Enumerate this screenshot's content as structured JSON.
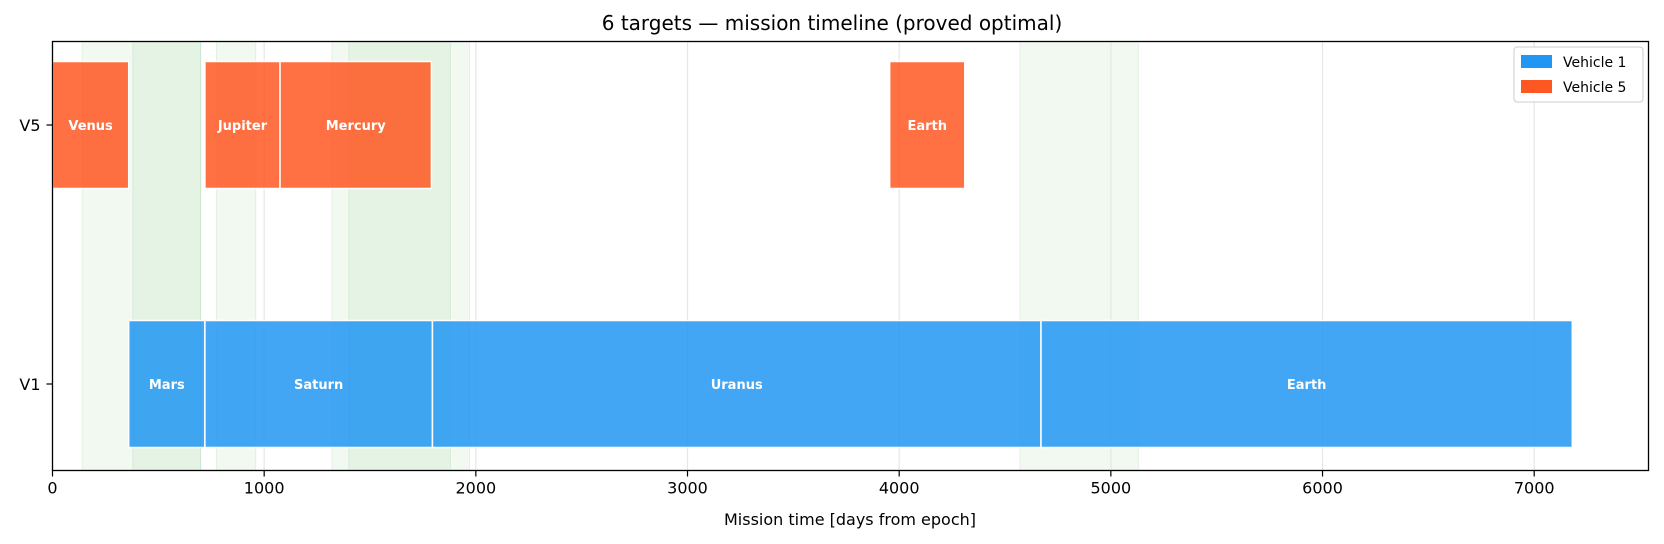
{
  "chart_data": {
    "type": "gantt",
    "title": "6 targets — mission timeline (proved optimal)",
    "xlabel": "Mission time [days from epoch]",
    "xlim": [
      0,
      7540
    ],
    "xticks": [
      0,
      1000,
      2000,
      3000,
      4000,
      5000,
      6000,
      7000
    ],
    "rows": [
      "V5",
      "V1"
    ],
    "grid": "vertical",
    "legend": {
      "placement": "top-right",
      "entries": [
        {
          "name": "Vehicle 1",
          "color": "#2196F3"
        },
        {
          "name": "Vehicle 5",
          "color": "#FF5722"
        }
      ]
    },
    "windows": [
      [
        140,
        700
      ],
      [
        380,
        700
      ],
      [
        775,
        960
      ],
      [
        1320,
        1880
      ],
      [
        1400,
        1970
      ],
      [
        4570,
        5130
      ]
    ],
    "series": [
      {
        "name": "Vehicle 5",
        "row": "V5",
        "color": "#FF5722",
        "segments": [
          {
            "label": "Venus",
            "start": 0,
            "end": 360
          },
          {
            "label": "Jupiter",
            "start": 720,
            "end": 1075
          },
          {
            "label": "Mercury",
            "start": 1075,
            "end": 1790
          },
          {
            "label": "Earth",
            "start": 3955,
            "end": 4310
          }
        ]
      },
      {
        "name": "Vehicle 1",
        "row": "V1",
        "color": "#2196F3",
        "segments": [
          {
            "label": "Mars",
            "start": 360,
            "end": 720
          },
          {
            "label": "Saturn",
            "start": 720,
            "end": 1795
          },
          {
            "label": "Uranus",
            "start": 1795,
            "end": 4670
          },
          {
            "label": "Earth",
            "start": 4670,
            "end": 7180
          }
        ]
      }
    ]
  }
}
